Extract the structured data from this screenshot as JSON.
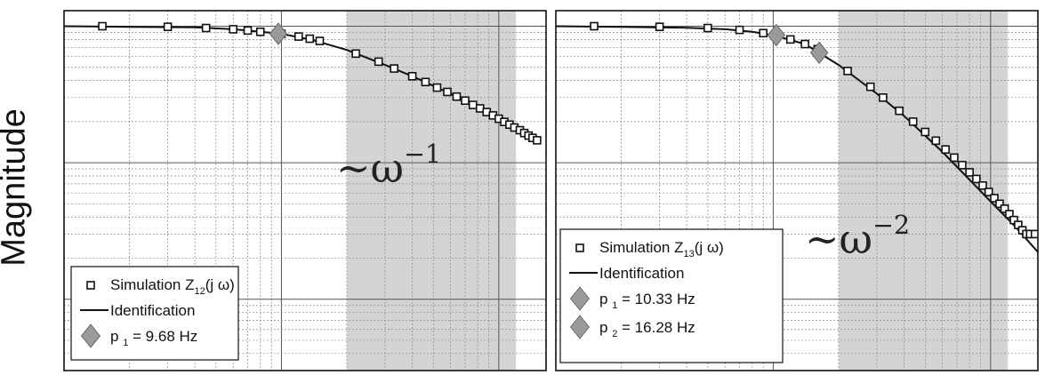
{
  "ylabel": "Magnitude",
  "chart_data": [
    {
      "type": "line",
      "xscale": "log",
      "yscale": "log",
      "grid": true,
      "legend": "bottom-left",
      "annotation": {
        "base": "~ω",
        "exponent": "−1"
      },
      "highlight_band": [
        20,
        120
      ],
      "series": [
        {
          "name": "Simulation",
          "name_sub": "12",
          "name_tail": "(j ω)",
          "kind": "markers",
          "marker": "square",
          "x": [
            1.5,
            3,
            4.5,
            6,
            7,
            8,
            10,
            12,
            13.5,
            15,
            22,
            28,
            33,
            40,
            46,
            52,
            58,
            64,
            70,
            76,
            82,
            88,
            94,
            100,
            106,
            112,
            118,
            125,
            131,
            137,
            143,
            150
          ],
          "y": [
            1.0,
            0.99,
            0.97,
            0.95,
            0.93,
            0.91,
            0.88,
            0.84,
            0.81,
            0.78,
            0.63,
            0.55,
            0.49,
            0.43,
            0.39,
            0.355,
            0.33,
            0.305,
            0.285,
            0.265,
            0.25,
            0.235,
            0.222,
            0.21,
            0.199,
            0.19,
            0.181,
            0.173,
            0.165,
            0.158,
            0.152,
            0.146
          ]
        },
        {
          "name": "Identification",
          "kind": "line",
          "x": [
            1,
            2,
            4,
            6,
            8,
            10,
            14,
            20,
            30,
            40,
            60,
            80,
            100,
            120,
            150
          ],
          "y": [
            1.0,
            0.99,
            0.98,
            0.95,
            0.91,
            0.88,
            0.79,
            0.67,
            0.52,
            0.43,
            0.32,
            0.26,
            0.21,
            0.182,
            0.146
          ]
        },
        {
          "name": "p",
          "name_sub": "1",
          "name_tail": "= 9.68 Hz",
          "kind": "markers",
          "marker": "diamond",
          "x": [
            9.68
          ],
          "y": [
            0.88
          ]
        }
      ]
    },
    {
      "type": "line",
      "xscale": "log",
      "yscale": "log",
      "grid": true,
      "legend": "bottom-left",
      "annotation": {
        "base": "~ω",
        "exponent": "−2"
      },
      "highlight_band": [
        20,
        120
      ],
      "series": [
        {
          "name": "Simulation",
          "name_sub": "13",
          "name_tail": "(j ω)",
          "kind": "markers",
          "marker": "square",
          "x": [
            1.5,
            3,
            5,
            7,
            9,
            12,
            14,
            16,
            22,
            28,
            32,
            38,
            44,
            50,
            56,
            62,
            68,
            74,
            80,
            86,
            92,
            98,
            104,
            110,
            116,
            122,
            128,
            134,
            140,
            146,
            152,
            160
          ],
          "y": [
            1.0,
            0.99,
            0.97,
            0.94,
            0.89,
            0.8,
            0.74,
            0.68,
            0.47,
            0.36,
            0.3,
            0.24,
            0.2,
            0.168,
            0.145,
            0.125,
            0.109,
            0.096,
            0.085,
            0.076,
            0.068,
            0.061,
            0.055,
            0.05,
            0.046,
            0.042,
            0.038,
            0.035,
            0.032,
            0.03,
            0.03,
            0.03
          ]
        },
        {
          "name": "Identification",
          "kind": "line",
          "x": [
            1,
            2,
            4,
            6,
            8,
            10,
            14,
            20,
            30,
            40,
            60,
            80,
            100,
            130,
            170
          ],
          "y": [
            1.0,
            0.99,
            0.975,
            0.95,
            0.91,
            0.86,
            0.74,
            0.52,
            0.32,
            0.22,
            0.12,
            0.075,
            0.052,
            0.034,
            0.021
          ]
        },
        {
          "name": "p",
          "name_sub": "1",
          "name_tail": "= 10.33 Hz",
          "kind": "markers",
          "marker": "diamond",
          "x": [
            10.33
          ],
          "y": [
            0.86
          ]
        },
        {
          "name": "p",
          "name_sub": "2",
          "name_tail": "= 16.28 Hz",
          "kind": "markers",
          "marker": "diamond",
          "x": [
            16.28
          ],
          "y": [
            0.64
          ]
        }
      ]
    }
  ]
}
